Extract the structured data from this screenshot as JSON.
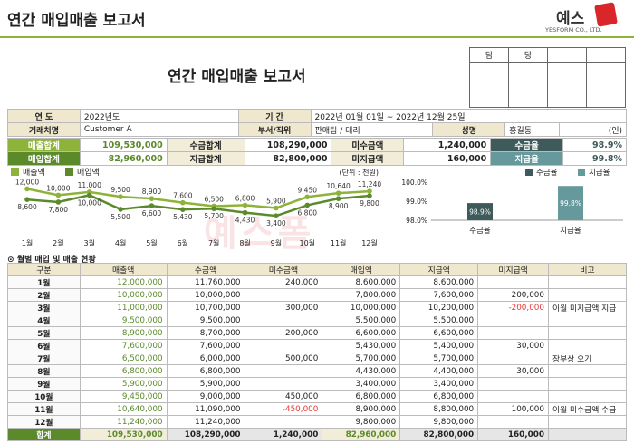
{
  "header": {
    "top_title": "연간 매입매출 보고서",
    "logo_text": "예스",
    "logo_sub": "YESFORM CO., LTD.",
    "doc_title": "연간 매입매출 보고서",
    "approval": [
      "담",
      "당"
    ]
  },
  "info": {
    "year_label": "연    도",
    "year_value": "2022년도",
    "period_label": "기    간",
    "period_value": "2022년 01월 01일 ~ 2022년 12월 25일",
    "client_label": "거래처명",
    "client_value": "Customer A",
    "dept_label": "부서/직위",
    "dept_value": "판매팀 / 대리",
    "name_label": "성명",
    "name_value": "홍길동",
    "seal": "(인)"
  },
  "summary": {
    "sales_total_label": "매출합계",
    "sales_total": "109,530,000",
    "received_total_label": "수금합계",
    "received_total": "108,290,000",
    "unreceived_label": "미수금액",
    "unreceived": "1,240,000",
    "receive_rate_label": "수금율",
    "receive_rate": "98.9%",
    "purchase_total_label": "매입합계",
    "purchase_total": "82,960,000",
    "paid_total_label": "지급합계",
    "paid_total": "82,800,000",
    "unpaid_label": "미지급액",
    "unpaid": "160,000",
    "pay_rate_label": "지급율",
    "pay_rate": "99.8%"
  },
  "colors": {
    "sales": "#8db33a",
    "purchase": "#5b8a2b",
    "receive_rate": "#3e5a5a",
    "pay_rate": "#65999b"
  },
  "chart_data": [
    {
      "type": "line",
      "title": "",
      "unit_label": "(단위 : 천원)",
      "categories": [
        "1월",
        "2월",
        "3월",
        "4월",
        "5월",
        "6월",
        "7월",
        "8월",
        "9월",
        "10월",
        "11월",
        "12월"
      ],
      "series": [
        {
          "name": "매출액",
          "values": [
            12000,
            10000,
            11000,
            9500,
            8900,
            7600,
            6500,
            6800,
            5900,
            9450,
            10640,
            11240
          ]
        },
        {
          "name": "매입액",
          "values": [
            8600,
            7800,
            10000,
            5500,
            6600,
            5430,
            5700,
            4430,
            3400,
            6800,
            8900,
            9800
          ]
        }
      ],
      "ylim": [
        2000,
        13000
      ]
    },
    {
      "type": "bar",
      "categories": [
        "수금율",
        "지급율"
      ],
      "values": [
        98.9,
        99.8
      ],
      "value_labels": [
        "98.9%",
        "99.8%"
      ],
      "legend": [
        "수금율",
        "지급율"
      ],
      "y_ticks": [
        "100.0%",
        "99.0%",
        "98.0%"
      ],
      "ylim": [
        98.0,
        100.0
      ]
    }
  ],
  "monthly": {
    "title": "월별 매입 및 매출 현황",
    "headers": [
      "구분",
      "매출액",
      "수금액",
      "미수금액",
      "매입액",
      "지급액",
      "미지급액",
      "비고"
    ],
    "rows": [
      [
        "1월",
        "12,000,000",
        "11,760,000",
        "240,000",
        "8,600,000",
        "8,600,000",
        "",
        ""
      ],
      [
        "2월",
        "10,000,000",
        "10,000,000",
        "",
        "7,800,000",
        "7,600,000",
        "200,000",
        ""
      ],
      [
        "3월",
        "11,000,000",
        "10,700,000",
        "300,000",
        "10,000,000",
        "10,200,000",
        "-200,000",
        "이월 미지급액 지급"
      ],
      [
        "4월",
        "9,500,000",
        "9,500,000",
        "",
        "5,500,000",
        "5,500,000",
        "",
        ""
      ],
      [
        "5월",
        "8,900,000",
        "8,700,000",
        "200,000",
        "6,600,000",
        "6,600,000",
        "",
        ""
      ],
      [
        "6월",
        "7,600,000",
        "7,600,000",
        "",
        "5,430,000",
        "5,400,000",
        "30,000",
        ""
      ],
      [
        "7월",
        "6,500,000",
        "6,000,000",
        "500,000",
        "5,700,000",
        "5,700,000",
        "",
        "장부상 오기"
      ],
      [
        "8월",
        "6,800,000",
        "6,800,000",
        "",
        "4,430,000",
        "4,400,000",
        "30,000",
        ""
      ],
      [
        "9월",
        "5,900,000",
        "5,900,000",
        "",
        "3,400,000",
        "3,400,000",
        "",
        ""
      ],
      [
        "10월",
        "9,450,000",
        "9,000,000",
        "450,000",
        "6,800,000",
        "6,800,000",
        "",
        ""
      ],
      [
        "11월",
        "10,640,000",
        "11,090,000",
        "-450,000",
        "8,900,000",
        "8,800,000",
        "100,000",
        "이월 미수금액 수금"
      ],
      [
        "12월",
        "11,240,000",
        "11,240,000",
        "",
        "9,800,000",
        "9,800,000",
        "",
        ""
      ]
    ],
    "total": [
      "합계",
      "109,530,000",
      "108,290,000",
      "1,240,000",
      "82,960,000",
      "82,800,000",
      "160,000",
      ""
    ]
  },
  "watermark": "예스폼"
}
